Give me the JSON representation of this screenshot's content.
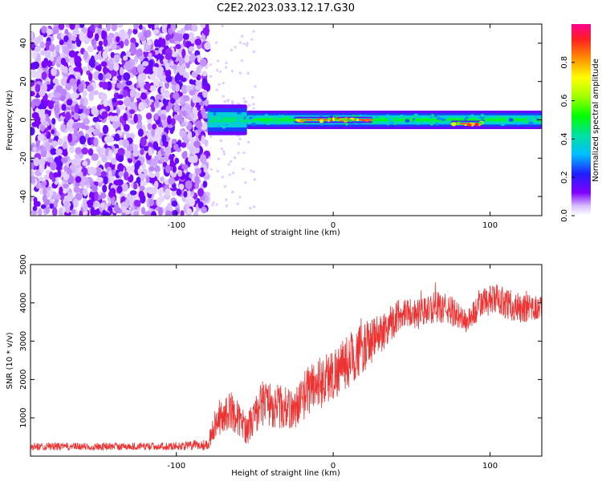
{
  "title": "C2E2.2023.033.12.17.G30",
  "chart_data": [
    {
      "type": "heatmap",
      "xlabel": "Height of straight line (km)",
      "ylabel": "Frequency (Hz)",
      "xlim": [
        -193,
        133
      ],
      "ylim": [
        -50,
        50
      ],
      "xticks": [
        -100,
        0,
        100
      ],
      "yticks": [
        -40,
        -20,
        0,
        20,
        40
      ],
      "colorbar": {
        "label": "Normalized spectral amplitude",
        "range": [
          0,
          1
        ],
        "ticks": [
          0.0,
          0.2,
          0.4,
          0.6,
          0.8
        ]
      },
      "description_regions": [
        {
          "x_range": [
            -193,
            -80
          ],
          "freq_range": [
            -50,
            50
          ],
          "amplitude": 0.15
        },
        {
          "x_range": [
            -80,
            -55
          ],
          "freq_range": [
            -5,
            5
          ],
          "amplitude": 0.45
        },
        {
          "x_range": [
            -55,
            133
          ],
          "freq_range": [
            -3,
            3
          ],
          "amplitude": 0.5
        },
        {
          "x_range": [
            -25,
            25
          ],
          "freq_range": [
            -1,
            1
          ],
          "amplitude": 0.95
        },
        {
          "x_range": [
            75,
            95
          ],
          "freq_range": [
            -3,
            -1
          ],
          "amplitude": 0.95
        }
      ]
    },
    {
      "type": "line",
      "xlabel": "Height of straight line (km)",
      "ylabel": "SNR (10 * v/v)",
      "xlim": [
        -193,
        133
      ],
      "ylim": [
        0,
        5000
      ],
      "xticks": [
        -100,
        0,
        100
      ],
      "yticks": [
        1000,
        2000,
        3000,
        4000,
        5000
      ],
      "color": "#ee3333",
      "envelope": {
        "x": [
          -193,
          -150,
          -100,
          -80,
          -75,
          -65,
          -55,
          -45,
          -35,
          -25,
          -15,
          -5,
          5,
          15,
          25,
          35,
          45,
          55,
          65,
          75,
          85,
          95,
          105,
          115,
          125,
          133
        ],
        "y": [
          250,
          250,
          260,
          300,
          900,
          1200,
          700,
          1400,
          1300,
          1200,
          1800,
          2000,
          2300,
          2700,
          3000,
          3400,
          3800,
          3700,
          3900,
          3800,
          3500,
          4000,
          4100,
          3900,
          3800,
          3900
        ],
        "spread": [
          100,
          100,
          100,
          150,
          400,
          500,
          400,
          600,
          600,
          500,
          700,
          700,
          700,
          700,
          600,
          500,
          400,
          400,
          400,
          400,
          300,
          400,
          400,
          400,
          400,
          300
        ]
      }
    }
  ]
}
